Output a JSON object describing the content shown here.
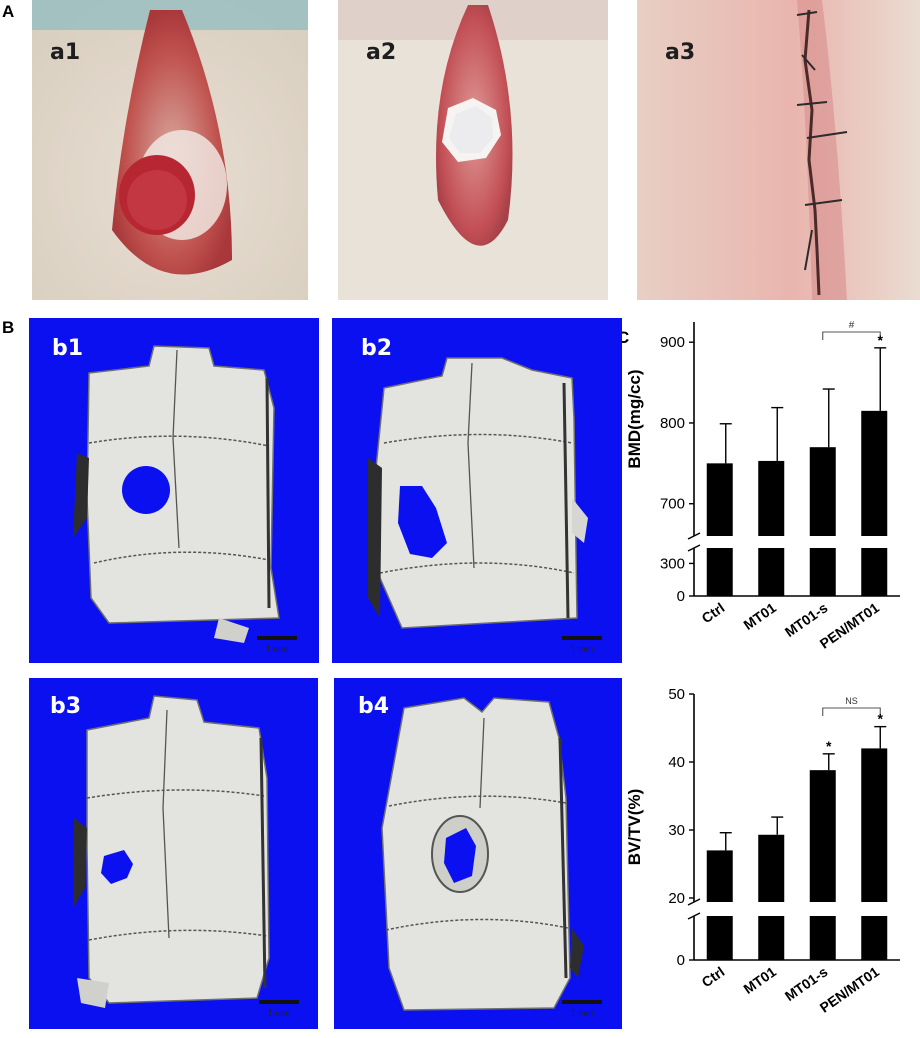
{
  "panels": {
    "A": {
      "label": "A",
      "photos": [
        {
          "label": "a1",
          "depicts": "surgical-site-defect-exposed"
        },
        {
          "label": "a2",
          "depicts": "surgical-site-implant-placed"
        },
        {
          "label": "a3",
          "depicts": "surgical-site-sutured"
        }
      ]
    },
    "B": {
      "label": "B",
      "renders": [
        {
          "label": "b1",
          "scale": "1 mm"
        },
        {
          "label": "b2",
          "scale": "1 mm"
        },
        {
          "label": "b3",
          "scale": "1 mm"
        },
        {
          "label": "b4",
          "scale": "1 mm"
        }
      ],
      "colors": {
        "background": "#0a10f0",
        "bone": "#e3e3df"
      }
    },
    "C": {
      "label": "C"
    }
  },
  "chart_data": [
    {
      "type": "bar",
      "categories": [
        "Ctrl",
        "MT01",
        "MT01-s",
        "PEN/MT01"
      ],
      "values": [
        750,
        753,
        770,
        815
      ],
      "errors": [
        49,
        66,
        72,
        78
      ],
      "ylabel": "BMD(mg/cc)",
      "axis_break": {
        "lower_ticks": [
          0,
          300
        ],
        "upper_ticks": [
          700,
          800,
          900
        ],
        "upper_range": [
          665,
          925
        ]
      },
      "significance": [
        {
          "between": [
            "MT01-s",
            "PEN/MT01"
          ],
          "label": "#"
        }
      ],
      "markers": [
        {
          "category": "PEN/MT01",
          "label": "*"
        }
      ],
      "bar_color": "#000000"
    },
    {
      "type": "bar",
      "categories": [
        "Ctrl",
        "MT01",
        "MT01-s",
        "PEN/MT01"
      ],
      "values": [
        27,
        29.3,
        38.8,
        42
      ],
      "errors": [
        2.6,
        2.6,
        2.4,
        3.2
      ],
      "ylabel": "BV/TV(%)",
      "axis_break": {
        "lower_ticks": [
          0
        ],
        "upper_ticks": [
          20,
          30,
          40,
          50
        ],
        "upper_range": [
          20,
          50
        ]
      },
      "significance": [
        {
          "between": [
            "MT01-s",
            "PEN/MT01"
          ],
          "label": "NS"
        }
      ],
      "markers": [
        {
          "category": "MT01-s",
          "label": "*"
        },
        {
          "category": "PEN/MT01",
          "label": "*"
        }
      ],
      "bar_color": "#000000"
    }
  ]
}
